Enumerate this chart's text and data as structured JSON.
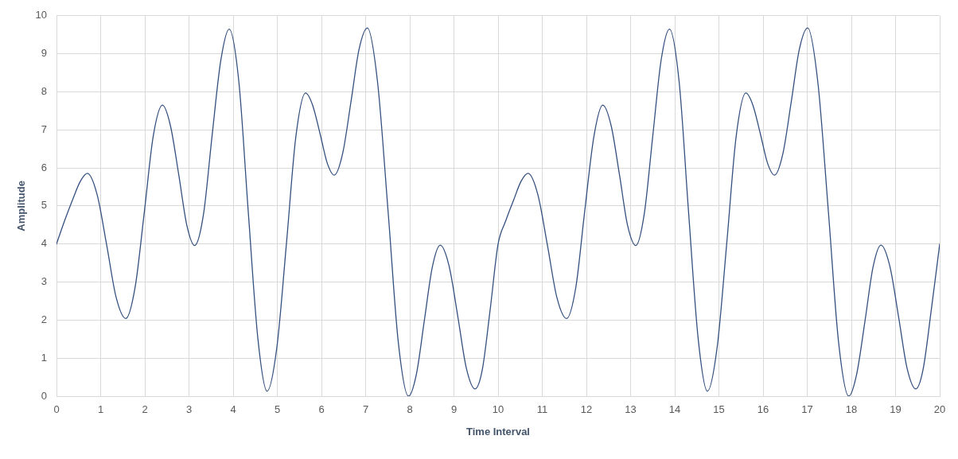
{
  "chart_data": {
    "type": "line",
    "xlabel": "Time Interval",
    "ylabel": "Amplitude",
    "x": [
      0,
      0.18,
      0.36,
      0.54,
      0.7,
      0.92,
      1.14,
      1.35,
      1.57,
      1.78,
      1.99,
      2.19,
      2.4,
      2.58,
      2.77,
      2.95,
      3.13,
      3.33,
      3.52,
      3.72,
      3.91,
      4.13,
      4.34,
      4.56,
      4.77,
      4.99,
      5.21,
      5.42,
      5.64,
      5.8,
      5.97,
      6.13,
      6.29,
      6.48,
      6.67,
      6.85,
      7.04,
      7.27,
      7.51,
      7.74,
      7.97,
      8.15,
      8.33,
      8.51,
      8.69,
      8.89,
      9.09,
      9.28,
      9.48,
      9.64,
      9.82,
      10,
      10.17,
      10.35,
      10.52,
      10.68,
      10.9,
      11.12,
      11.33,
      11.55,
      11.76,
      11.96,
      12.17,
      12.37,
      12.56,
      12.75,
      12.93,
      13.12,
      13.31,
      13.5,
      13.69,
      13.88,
      14.1,
      14.31,
      14.53,
      14.74,
      14.96,
      15.18,
      15.39,
      15.61,
      15.77,
      15.94,
      16.1,
      16.26,
      16.45,
      16.64,
      16.82,
      17.01,
      17.24,
      17.48,
      17.71,
      17.94,
      18.12,
      18.31,
      18.49,
      18.67,
      18.87,
      19.07,
      19.26,
      19.46,
      19.62,
      19.81,
      20
    ],
    "values": [
      4.0,
      4.6,
      5.15,
      5.65,
      5.86,
      5.3,
      3.95,
      2.6,
      2.04,
      2.86,
      4.85,
      6.83,
      7.65,
      7.11,
      5.81,
      4.5,
      3.96,
      4.79,
      6.81,
      8.82,
      9.65,
      8.26,
      4.89,
      1.52,
      0.13,
      1.28,
      4.05,
      6.82,
      7.97,
      7.65,
      6.89,
      6.13,
      5.81,
      6.38,
      7.75,
      9.11,
      9.68,
      8.26,
      4.84,
      1.42,
      0.0,
      0.58,
      1.99,
      3.39,
      3.97,
      3.42,
      2.08,
      0.74,
      0.19,
      0.68,
      2.27,
      4.0,
      4.6,
      5.15,
      5.65,
      5.86,
      5.3,
      3.95,
      2.6,
      2.04,
      2.86,
      4.85,
      6.83,
      7.65,
      7.11,
      5.81,
      4.5,
      3.96,
      4.79,
      6.81,
      8.82,
      9.65,
      8.26,
      4.89,
      1.52,
      0.13,
      1.28,
      4.05,
      6.82,
      7.97,
      7.65,
      6.89,
      6.13,
      5.81,
      6.38,
      7.75,
      9.11,
      9.68,
      8.26,
      4.84,
      1.42,
      0.0,
      0.58,
      1.99,
      3.39,
      3.97,
      3.42,
      2.08,
      0.74,
      0.19,
      0.68,
      2.27,
      4.0
    ],
    "color": "#34507f",
    "xlim": [
      0,
      20
    ],
    "xticks": [
      0,
      1,
      2,
      3,
      4,
      5,
      6,
      7,
      8,
      9,
      10,
      11,
      12,
      13,
      14,
      15,
      16,
      17,
      18,
      19,
      20
    ],
    "ylim": [
      0,
      10
    ],
    "yticks": [
      0,
      1,
      2,
      3,
      4,
      5,
      6,
      7,
      8,
      9,
      10
    ],
    "grid": true,
    "marker": "none",
    "line_style": "solid"
  }
}
